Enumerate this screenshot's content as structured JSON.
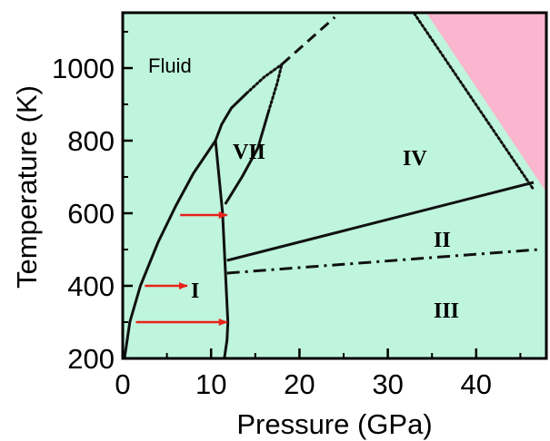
{
  "colors": {
    "background": "#bff5dc",
    "region_pink": "#fbb6cf",
    "boundary": "#111111",
    "arrow": "#e8221b"
  },
  "x_axis": {
    "title": "Pressure (GPa)",
    "ticks": [
      "0",
      "10",
      "20",
      "30",
      "40"
    ]
  },
  "y_axis": {
    "title": "Temperature (K)",
    "ticks": [
      "200",
      "400",
      "600",
      "800",
      "1000"
    ]
  },
  "regions": {
    "fluid": "Fluid",
    "vii": "VII",
    "iv": "IV",
    "i": "I",
    "ii": "II",
    "iii": "III"
  },
  "chart_data": {
    "type": "line",
    "title": "",
    "xlabel": "Pressure (GPa)",
    "ylabel": "Temperature (K)",
    "xlim": [
      0,
      47
    ],
    "ylim": [
      200,
      1150
    ],
    "series": [
      {
        "style": "solid",
        "x": [
          0.2,
          0.8,
          2,
          4,
          6,
          8,
          10.5
        ],
        "y": [
          200,
          300,
          400,
          520,
          620,
          710,
          800
        ]
      },
      {
        "style": "solid",
        "x": [
          10.5,
          11.3,
          11.7,
          11.9,
          11.8,
          11.5
        ],
        "y": [
          800,
          600,
          400,
          300,
          250,
          200
        ]
      },
      {
        "style": "solid",
        "x": [
          10.5,
          11.2,
          12.3,
          14
        ],
        "y": [
          800,
          845,
          890,
          930
        ]
      },
      {
        "style": "dotted",
        "x": [
          14,
          16,
          18
        ],
        "y": [
          930,
          975,
          1010
        ]
      },
      {
        "style": "dashed",
        "x": [
          18,
          21,
          24
        ],
        "y": [
          1010,
          1075,
          1140
        ]
      },
      {
        "style": "solid",
        "x": [
          11.6,
          13.5,
          15.3,
          16.5
        ],
        "y": [
          625,
          700,
          780,
          880
        ]
      },
      {
        "style": "dotted",
        "x": [
          16.5,
          17.5,
          18
        ],
        "y": [
          880,
          960,
          1010
        ]
      },
      {
        "style": "solid",
        "x": [
          11.8,
          46.5
        ],
        "y": [
          470,
          685
        ]
      },
      {
        "style": "dashdot",
        "x": [
          11.8,
          47
        ],
        "y": [
          435,
          500
        ]
      },
      {
        "style": "dotted",
        "x": [
          33,
          46.5
        ],
        "y": [
          1150,
          665
        ]
      }
    ],
    "arrows": [
      {
        "x": [
          6.5,
          11.8
        ],
        "y": [
          595,
          595
        ]
      },
      {
        "x": [
          2.5,
          7.3
        ],
        "y": [
          400,
          400
        ]
      },
      {
        "x": [
          1.5,
          11.8
        ],
        "y": [
          300,
          300
        ]
      }
    ]
  }
}
